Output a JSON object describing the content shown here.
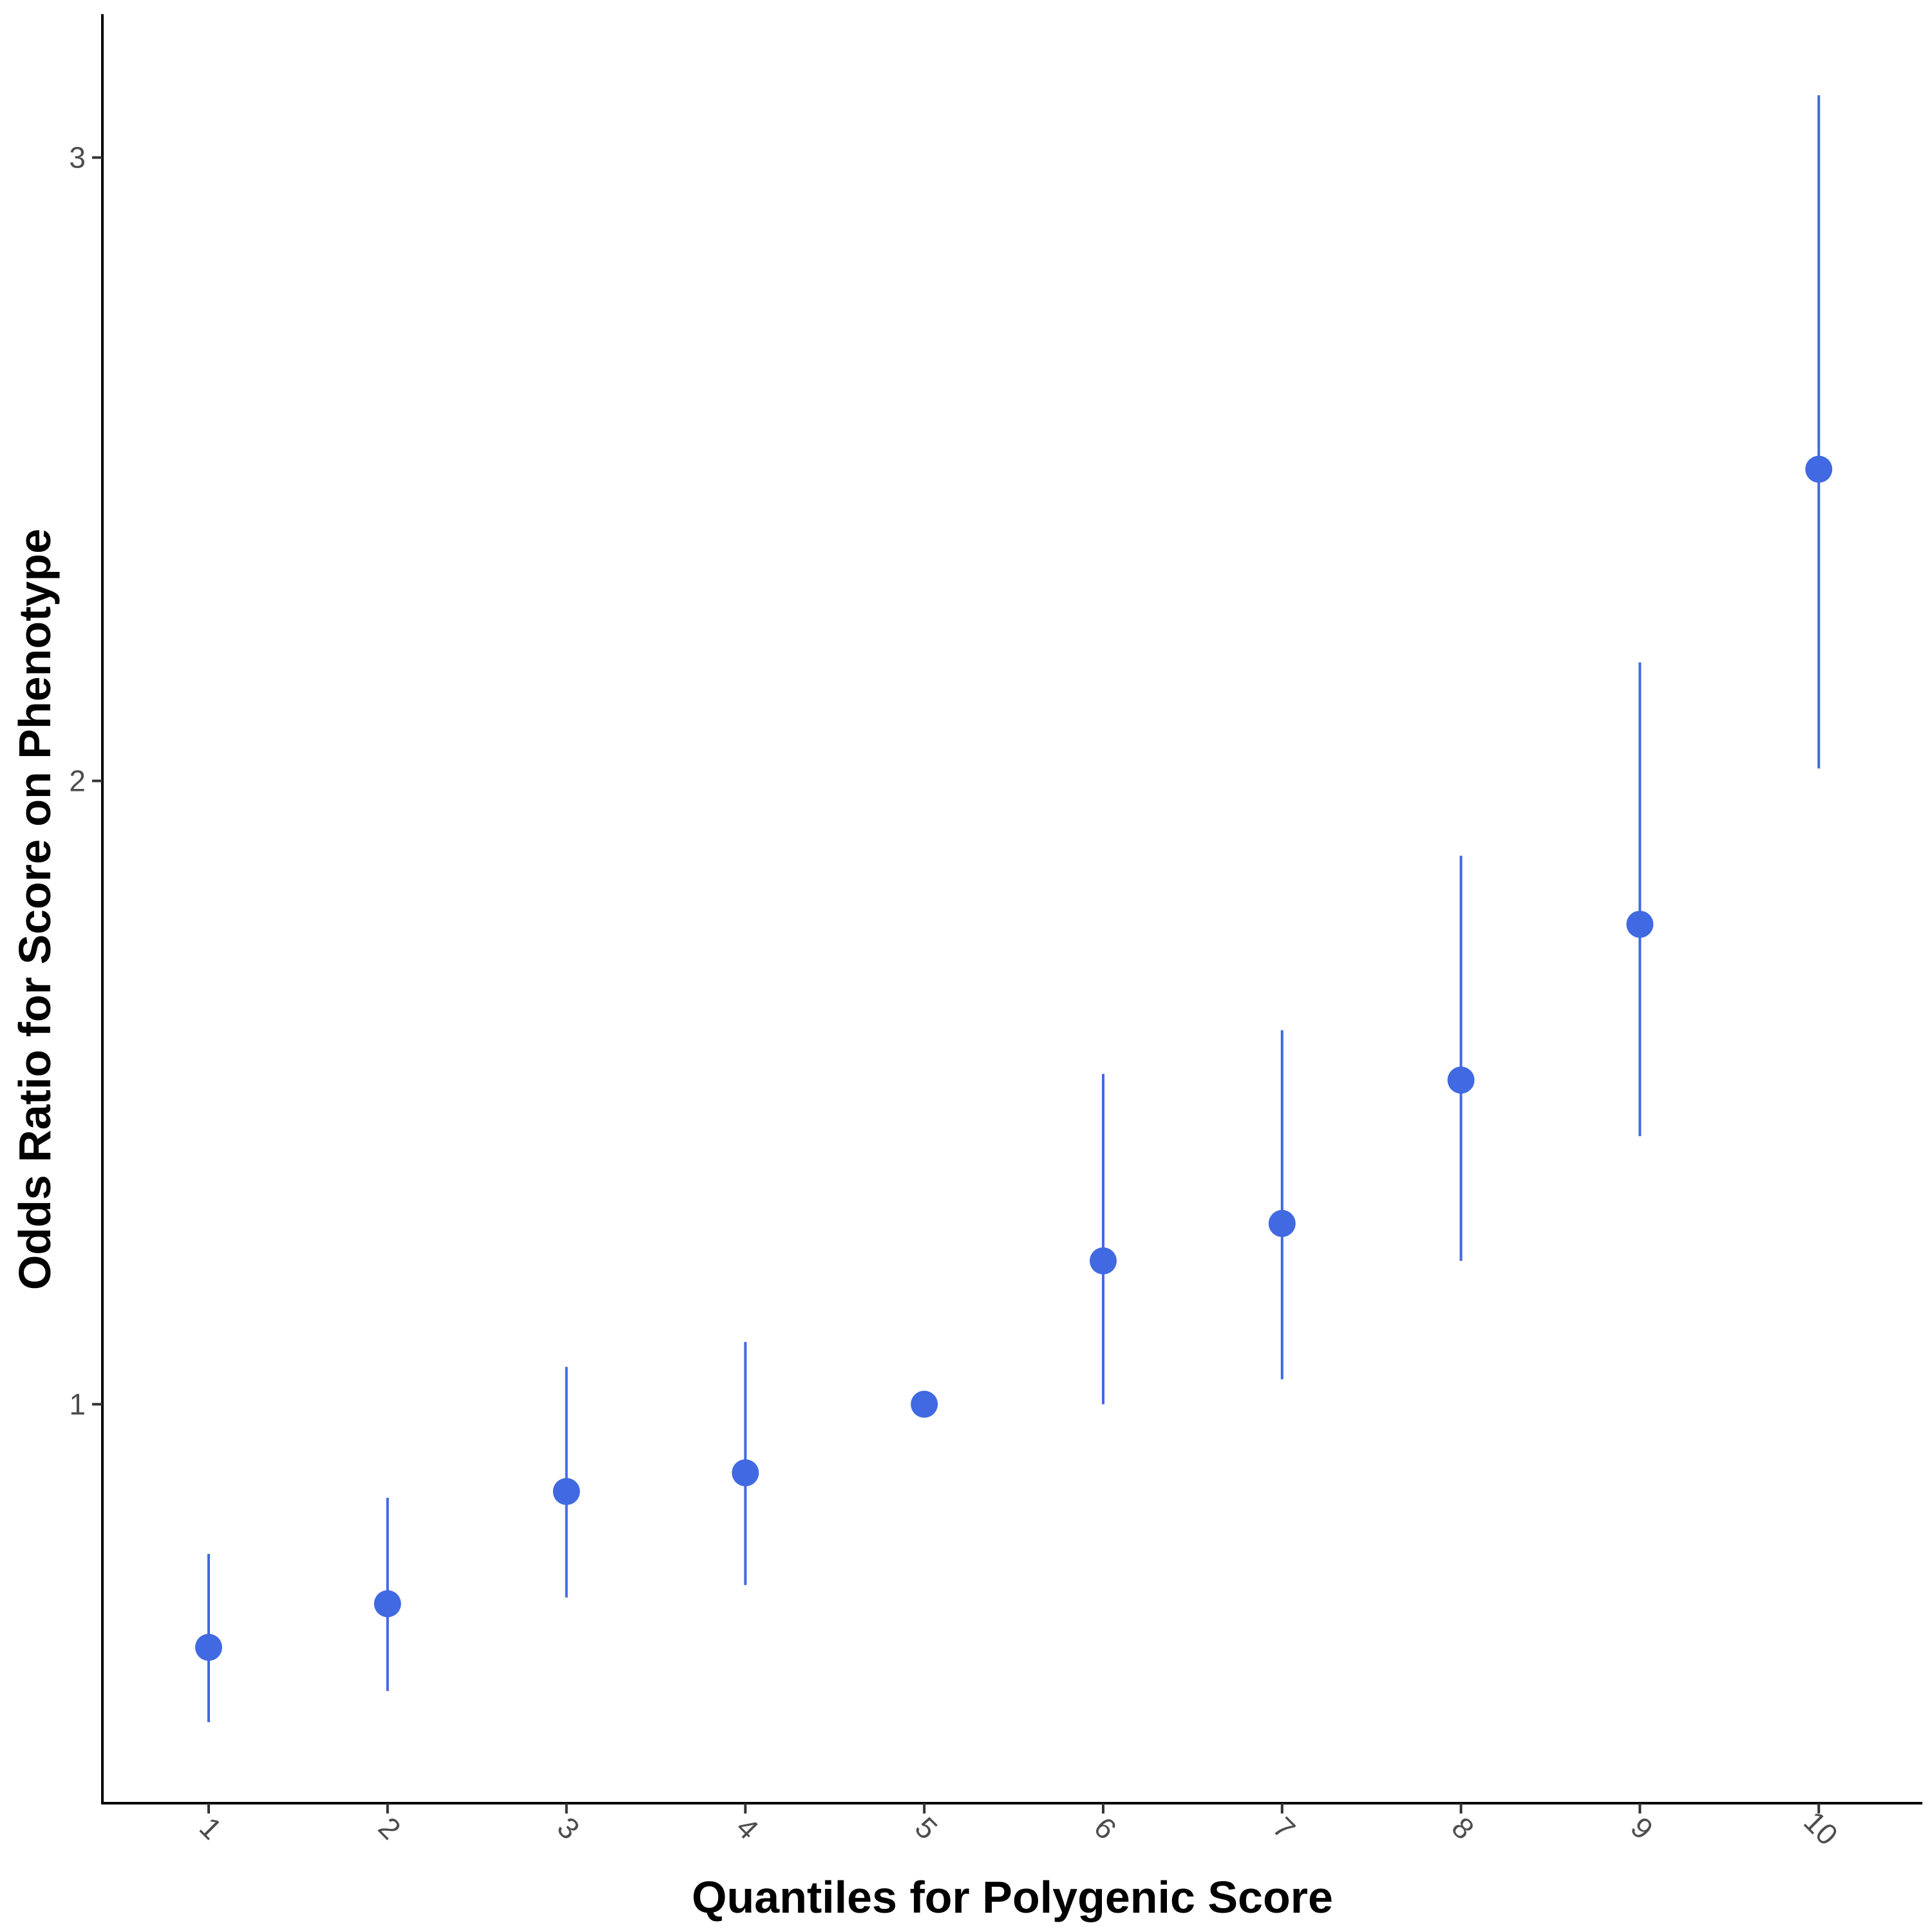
{
  "chart_data": {
    "type": "scatter",
    "xlabel": "Quantiles for Polygenic Score",
    "ylabel": "Odds Ratio for Score on Phenotype",
    "x": [
      "1",
      "2",
      "3",
      "4",
      "5",
      "6",
      "7",
      "8",
      "9",
      "10"
    ],
    "y": [
      0.61,
      0.68,
      0.86,
      0.89,
      1.0,
      1.23,
      1.29,
      1.52,
      1.77,
      2.5
    ],
    "ci_low": [
      0.49,
      0.54,
      0.69,
      0.71,
      1.0,
      1.0,
      1.04,
      1.23,
      1.43,
      2.02
    ],
    "ci_high": [
      0.76,
      0.85,
      1.06,
      1.1,
      1.0,
      1.53,
      1.6,
      1.88,
      2.19,
      3.1
    ],
    "ylim": [
      0.36,
      3.23
    ],
    "yticks": [
      "1",
      "2",
      "3"
    ],
    "grid": false,
    "legend": "none",
    "point_color": "#4169E1",
    "errorbar_color": "#4169E1"
  }
}
